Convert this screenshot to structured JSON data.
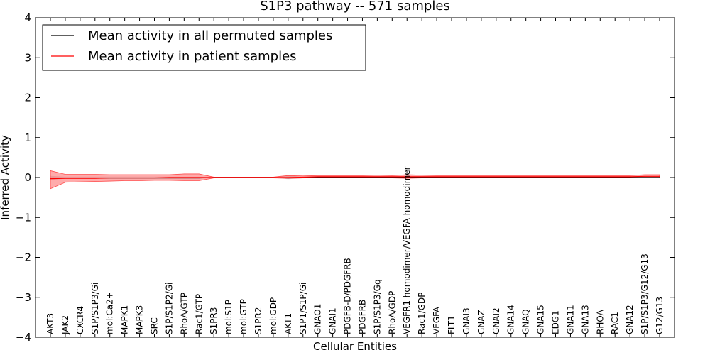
{
  "chart_data": {
    "type": "line",
    "title": "S1P3 pathway -- 571 samples",
    "xlabel": "Cellular Entities",
    "ylabel": "Inferred Activity",
    "ylim": [
      -4,
      4
    ],
    "yticks": [
      "−4",
      "−3",
      "−2",
      "−1",
      "0",
      "1",
      "2",
      "3",
      "4"
    ],
    "legend_position": "top-left",
    "categories": [
      "AKT3",
      "JAK2",
      "CXCR4",
      "S1P/S1P3/Gi",
      "mol:Ca2+",
      "MAPK1",
      "MAPK3",
      "SRC",
      "S1P/S1P2/Gi",
      "RhoA/GTP",
      "Rac1/GTP",
      "S1PR3",
      "mol:S1P",
      "mol:GTP",
      "S1PR2",
      "mol:GDP",
      "AKT1",
      "S1P1/S1P/Gi",
      "GNAO1",
      "GNAI1",
      "PDGFB-D/PDGFRB",
      "PDGFRB",
      "S1P/S1P3/Gq",
      "RhoA/GDP",
      "VEGFR1 homodimer/VEGFA homodimer",
      "Rac1/GDP",
      "VEGFA",
      "FLT1",
      "GNAI3",
      "GNAZ",
      "GNAI2",
      "GNA14",
      "GNAQ",
      "GNA15",
      "EDG1",
      "GNA11",
      "GNA13",
      "RHOA",
      "RAC1",
      "GNA12",
      "S1P/S1P3/G12/G13",
      "G12/G13"
    ],
    "series": [
      {
        "name": "Mean activity in all permuted samples",
        "color": "#000000",
        "values": [
          -0.01,
          -0.01,
          -0.01,
          -0.01,
          -0.01,
          -0.01,
          -0.01,
          -0.01,
          -0.01,
          -0.01,
          -0.01,
          0,
          0,
          0,
          0,
          0,
          -0.01,
          0,
          0,
          0,
          0,
          0,
          0,
          0,
          0,
          0,
          0,
          0,
          0,
          0,
          0,
          0,
          0,
          0,
          0,
          0,
          0,
          0,
          0,
          0,
          0,
          0
        ],
        "band_low": [
          -0.06,
          -0.03,
          -0.03,
          -0.03,
          -0.03,
          -0.03,
          -0.03,
          -0.03,
          -0.03,
          -0.03,
          -0.03,
          -0.01,
          -0.01,
          -0.01,
          -0.01,
          -0.01,
          -0.04,
          -0.02,
          -0.01,
          -0.01,
          -0.01,
          -0.01,
          -0.01,
          -0.01,
          -0.01,
          -0.01,
          -0.01,
          -0.01,
          -0.01,
          -0.01,
          -0.01,
          -0.01,
          -0.01,
          -0.01,
          -0.01,
          -0.01,
          -0.01,
          -0.01,
          -0.01,
          -0.01,
          -0.01,
          -0.01
        ],
        "band_high": [
          0.04,
          0.02,
          0.02,
          0.02,
          0.02,
          0.02,
          0.02,
          0.02,
          0.02,
          0.02,
          0.02,
          0.01,
          0.01,
          0.01,
          0.01,
          0.01,
          0.05,
          0.02,
          0.01,
          0.01,
          0.01,
          0.01,
          0.01,
          0.01,
          0.01,
          0.01,
          0.01,
          0.01,
          0.01,
          0.01,
          0.01,
          0.01,
          0.01,
          0.01,
          0.01,
          0.01,
          0.01,
          0.01,
          0.01,
          0.01,
          0.01,
          0.01
        ]
      },
      {
        "name": "Mean activity in patient samples",
        "color": "#ff0000",
        "band_color": "#ff6666",
        "values": [
          -0.03,
          -0.02,
          -0.02,
          -0.02,
          -0.01,
          -0.01,
          -0.01,
          -0.01,
          0,
          0,
          0,
          0,
          0,
          0,
          0,
          0,
          0,
          0.01,
          0.02,
          0.02,
          0.02,
          0.02,
          0.02,
          0.02,
          0.02,
          0.02,
          0.02,
          0.02,
          0.02,
          0.02,
          0.02,
          0.02,
          0.02,
          0.02,
          0.02,
          0.02,
          0.02,
          0.02,
          0.02,
          0.02,
          0.03,
          0.03
        ],
        "band_low": [
          -0.28,
          -0.12,
          -0.11,
          -0.1,
          -0.09,
          -0.08,
          -0.08,
          -0.07,
          -0.07,
          -0.08,
          -0.08,
          -0.01,
          -0.01,
          -0.01,
          -0.01,
          -0.01,
          -0.02,
          -0.01,
          -0.01,
          -0.01,
          -0.01,
          -0.01,
          -0.01,
          -0.01,
          -0.02,
          -0.01,
          -0.01,
          -0.01,
          -0.01,
          -0.01,
          -0.01,
          -0.01,
          -0.01,
          -0.01,
          -0.01,
          -0.01,
          -0.01,
          -0.01,
          -0.01,
          -0.01,
          -0.01,
          -0.01
        ],
        "band_high": [
          0.17,
          0.08,
          0.08,
          0.08,
          0.07,
          0.07,
          0.07,
          0.07,
          0.07,
          0.09,
          0.09,
          0.01,
          0.01,
          0.01,
          0.01,
          0.01,
          0.05,
          0.04,
          0.05,
          0.05,
          0.05,
          0.05,
          0.06,
          0.05,
          0.07,
          0.06,
          0.05,
          0.05,
          0.05,
          0.05,
          0.05,
          0.05,
          0.05,
          0.05,
          0.05,
          0.05,
          0.05,
          0.05,
          0.05,
          0.05,
          0.07,
          0.07
        ]
      }
    ]
  }
}
